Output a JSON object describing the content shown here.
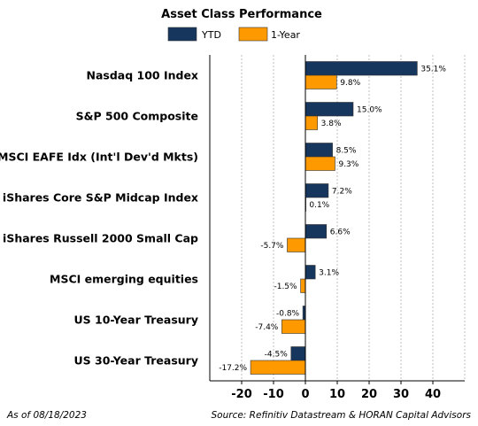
{
  "chart_data": {
    "type": "bar",
    "orientation": "horizontal",
    "title": "Asset Class Performance",
    "categories": [
      "Nasdaq 100 Index",
      "S&P 500 Composite",
      "MSCI EAFE Idx (Int'l Dev'd Mkts)",
      "iShares Core S&P Midcap Index",
      "iShares Russell 2000 Small Cap",
      "MSCI emerging equities",
      "US 10-Year Treasury",
      "US 30-Year Treasury"
    ],
    "series": [
      {
        "name": "YTD",
        "color": "#17365d",
        "values": [
          35.1,
          15.0,
          8.5,
          7.2,
          6.6,
          3.1,
          -0.8,
          -4.5
        ],
        "labels": [
          "35.1%",
          "15.0%",
          "8.5%",
          "7.2%",
          "6.6%",
          "3.1%",
          "-0.8%",
          "-4.5%"
        ]
      },
      {
        "name": "1-Year",
        "color": "#ff9900",
        "values": [
          9.8,
          3.8,
          9.3,
          0.1,
          -5.7,
          -1.5,
          -7.4,
          -17.2
        ],
        "labels": [
          "9.8%",
          "3.8%",
          "9.3%",
          "0.1%",
          "-5.7%",
          "-1.5%",
          "-7.4%",
          "-17.2%"
        ]
      }
    ],
    "xlim": [
      -30,
      50
    ],
    "xticks": [
      -20,
      -10,
      0,
      10,
      20,
      30,
      40
    ],
    "grid": true,
    "legend": "top"
  },
  "footer": {
    "date": "As of 08/18/2023",
    "source": "Source: Refinitiv Datastream & HORAN Capital Advisors"
  }
}
